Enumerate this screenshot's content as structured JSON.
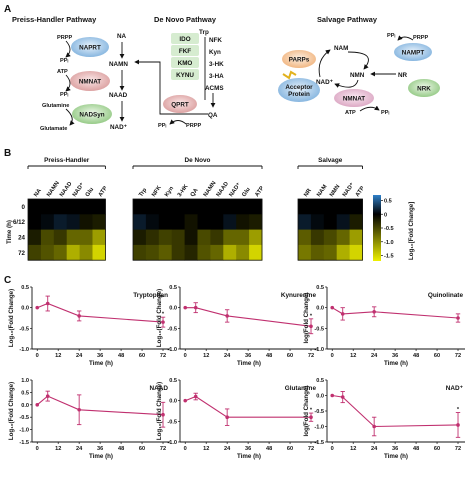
{
  "panels": {
    "a": "A",
    "b": "B",
    "c": "C"
  },
  "pathways": {
    "preiss": {
      "title": "Preiss-Handler Pathway",
      "na": "NA",
      "prpp": "PRPP",
      "ppi1": "PPᵢ",
      "naprt": "NAPRT",
      "namn": "NAMN",
      "atp": "ATP",
      "ppi2": "PPᵢ",
      "nmnat": "NMNAT",
      "naad": "NAAD",
      "glutamine": "Glutamine",
      "nadsyn": "NADSyn",
      "glutamate": "Glutamate",
      "nad": "NAD⁺"
    },
    "denovo": {
      "title": "De Novo Pathway",
      "trp": "Trp",
      "enzymes": [
        "IDO",
        "FKF",
        "KMO",
        "KYNU"
      ],
      "metabolites": [
        "NFK",
        "Kyn",
        "3-HK",
        "3-HA"
      ],
      "acms": "ACMS",
      "qa": "QA",
      "qprt": "QPRT",
      "ppi": "PPᵢ",
      "prpp": "PRPP"
    },
    "salvage": {
      "title": "Salvage Pathway",
      "ppi": "PPᵢ",
      "prpp": "PRPP",
      "nam": "NAM",
      "nampt": "NAMPT",
      "parps": "PARPs",
      "nmn": "NMN",
      "nr": "NR",
      "nad": "NAD⁺",
      "acceptor": [
        "Acceptor",
        "Protein"
      ],
      "nmnat": "NMNAT",
      "nrk": "NRK",
      "atp": "ATP",
      "ppi2": "PPᵢ"
    }
  },
  "heatmap": {
    "groups": [
      "Preiss-Handler",
      "De Novo",
      "Salvage"
    ],
    "columns": [
      [
        "NA",
        "NAMN",
        "NAAD",
        "NAD⁺",
        "Glu",
        "ATP"
      ],
      [
        "Trp",
        "NFK",
        "Kyn",
        "3-HK",
        "QA",
        "NAMN",
        "NAAD",
        "NAD⁺",
        "Glu",
        "ATP"
      ],
      [
        "NR",
        "NAM",
        "NMN",
        "NAD⁺",
        "ATP"
      ]
    ],
    "rows": [
      "0",
      "6/12",
      "24",
      "72"
    ],
    "row_axis_label": "Time (h)",
    "colorbar_label": "Log₁₀[Fold Change]",
    "colorbar_ticks": [
      "0.5",
      "0",
      "-0.5",
      "-1.0",
      "-1.5"
    ],
    "colorbar_range": [
      0.7,
      -1.7
    ],
    "values": [
      [
        [
          0,
          0,
          0,
          0,
          0,
          0
        ],
        [
          0,
          0.05,
          0.15,
          0.1,
          -0.1,
          -0.15
        ],
        [
          -0.15,
          -0.4,
          -0.3,
          -0.55,
          -0.55,
          -0.85
        ],
        [
          -0.35,
          -0.45,
          -0.55,
          -0.95,
          -0.75,
          -1.15
        ]
      ],
      [
        [
          0,
          0,
          0,
          0,
          0,
          0,
          0,
          0,
          0,
          0
        ],
        [
          0.15,
          0.05,
          0,
          0,
          -0.1,
          0,
          0,
          0.1,
          -0.1,
          -0.15
        ],
        [
          -0.15,
          -0.25,
          -0.35,
          -0.3,
          -0.1,
          -0.4,
          -0.3,
          -0.55,
          -0.55,
          -0.85
        ],
        [
          -0.35,
          -0.4,
          -0.5,
          -0.3,
          -0.2,
          -0.45,
          -0.55,
          -0.95,
          -0.75,
          -1.15
        ]
      ],
      [
        [
          0,
          0,
          0,
          0,
          0
        ],
        [
          0.15,
          0.05,
          0,
          0.1,
          -0.15
        ],
        [
          -0.5,
          -0.3,
          -0.4,
          -0.55,
          -0.85
        ],
        [
          -0.65,
          -0.5,
          -0.55,
          -0.95,
          -1.15
        ]
      ]
    ],
    "colors": {
      "pos": "#2f80c9",
      "zero": "#000000",
      "neg": "#eef000"
    }
  },
  "line_charts": {
    "xlabel": "Time (h)",
    "x_ticks": [
      0,
      12,
      24,
      36,
      48,
      60,
      72
    ],
    "line_color": "#c0306f"
  },
  "chart_data": [
    {
      "type": "line",
      "title": "Tryptophan",
      "ylabel": "Log₁₀(Fold Change)",
      "ylim": [
        -1.0,
        0.5
      ],
      "yticks": [
        "0.5",
        "0.0",
        "-0.5",
        "-1.0"
      ],
      "x": [
        0,
        6,
        24,
        72
      ],
      "y": [
        0,
        0.1,
        -0.2,
        -0.35
      ],
      "err": [
        0,
        0.18,
        0.12,
        0.12
      ],
      "sig": [
        false,
        false,
        false,
        true
      ]
    },
    {
      "type": "line",
      "title": "Kynurenine",
      "ylabel": "Log₁₀(Fold Change)",
      "ylim": [
        -1.0,
        0.5
      ],
      "yticks": [
        "0.5",
        "0.0",
        "-0.5",
        "-1.0"
      ],
      "x": [
        0,
        6,
        24,
        72
      ],
      "y": [
        0,
        0,
        -0.2,
        -0.45
      ],
      "err": [
        0,
        0.12,
        0.15,
        0.18
      ],
      "sig": [
        false,
        false,
        false,
        true
      ]
    },
    {
      "type": "line",
      "title": "Quinolinate",
      "ylabel": "log(Fold Change)",
      "ylim": [
        -1.0,
        0.5
      ],
      "yticks": [
        "0.5",
        "0.0",
        "-0.5",
        "-1.0"
      ],
      "x": [
        0,
        6,
        24,
        72
      ],
      "y": [
        0,
        -0.15,
        -0.1,
        -0.25
      ],
      "err": [
        0,
        0.15,
        0.12,
        0.1
      ],
      "sig": [
        false,
        false,
        false,
        false
      ]
    },
    {
      "type": "line",
      "title": "NAAD",
      "ylabel": "Log₁₀(Fold Change)",
      "ylim": [
        -1.5,
        1.0
      ],
      "yticks": [
        "1.0",
        "0.5",
        "0.0",
        "-0.5",
        "-1.0",
        "-1.5"
      ],
      "x": [
        0,
        6,
        24,
        72
      ],
      "y": [
        0,
        0.35,
        -0.2,
        -0.4
      ],
      "err": [
        0,
        0.2,
        0.6,
        0.5
      ],
      "sig": [
        false,
        false,
        false,
        false
      ]
    },
    {
      "type": "line",
      "title": "Glutamine",
      "ylabel": "Log₁₀(Fold Change)",
      "ylim": [
        -1.0,
        0.5
      ],
      "yticks": [
        "0.5",
        "0.0",
        "-0.5",
        "-1.0"
      ],
      "x": [
        0,
        6,
        24,
        72
      ],
      "y": [
        0,
        0.1,
        -0.4,
        -0.4
      ],
      "err": [
        0,
        0.08,
        0.2,
        0.1
      ],
      "sig": [
        false,
        false,
        false,
        true
      ]
    },
    {
      "type": "line",
      "title": "NAD⁺",
      "ylabel": "log(Fold Change)",
      "ylim": [
        -1.5,
        0.5
      ],
      "yticks": [
        "0.5",
        "0.0",
        "-0.5",
        "-1.0",
        "-1.5"
      ],
      "x": [
        0,
        6,
        24,
        72
      ],
      "y": [
        0,
        -0.05,
        -1.0,
        -0.95
      ],
      "err": [
        0,
        0.18,
        0.3,
        0.4
      ],
      "sig": [
        false,
        false,
        false,
        true
      ]
    }
  ]
}
